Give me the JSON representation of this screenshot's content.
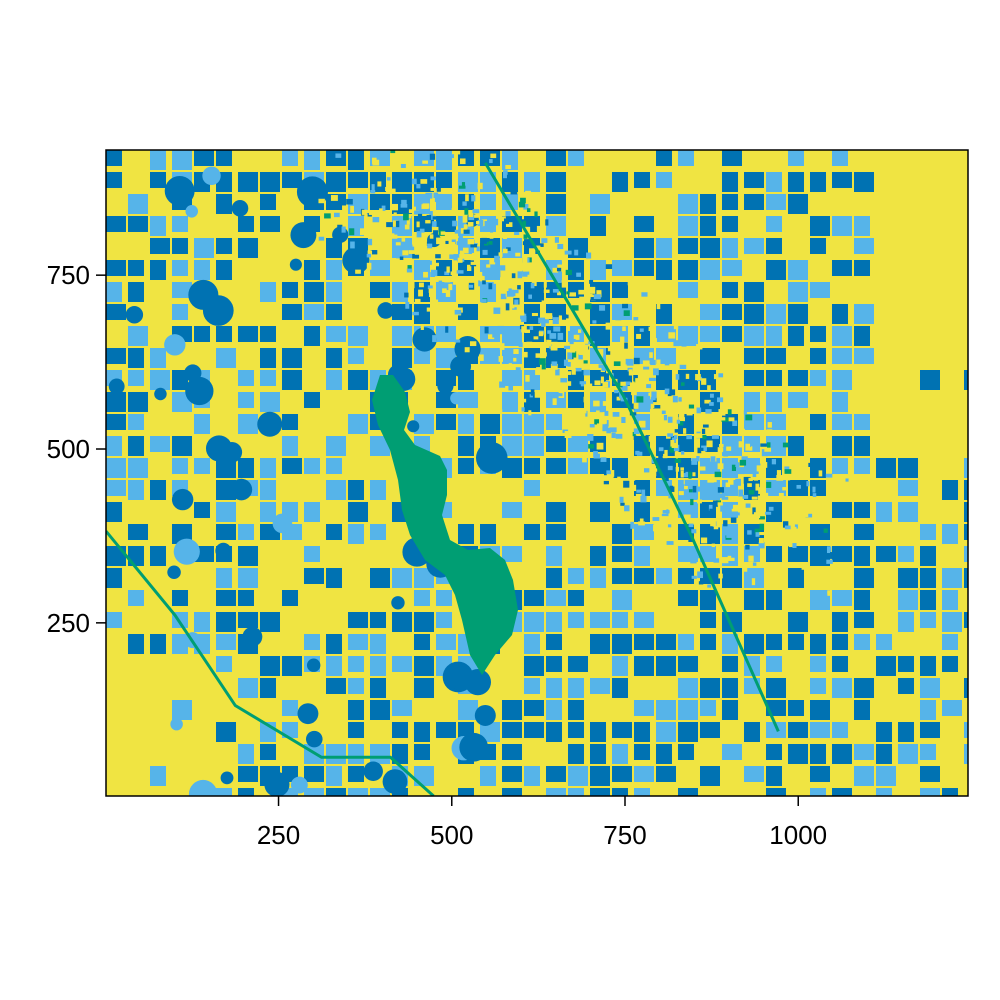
{
  "chart_data": {
    "type": "heatmap",
    "title": "",
    "xlabel": "",
    "ylabel": "",
    "xlim": [
      1,
      1245
    ],
    "ylim": [
      1,
      930
    ],
    "x_ticks": [
      250,
      500,
      750,
      1000
    ],
    "y_ticks": [
      250,
      500,
      750
    ],
    "x_tick_labels": [
      "250",
      "500",
      "750",
      "1000"
    ],
    "y_tick_labels": [
      "250",
      "500",
      "750"
    ],
    "grid": false,
    "legend": "none",
    "classes": [
      {
        "color": "#f0e442"
      },
      {
        "color": "#56b4e9"
      },
      {
        "color": "#0072b2"
      },
      {
        "color": "#009e73"
      }
    ],
    "seed": 7
  }
}
